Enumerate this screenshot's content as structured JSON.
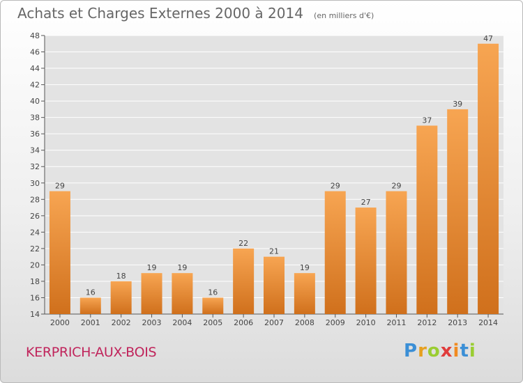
{
  "title": "Achats et Charges Externes 2000 à 2014",
  "subtitle": "(en milliers d'€)",
  "commune": "KERPRICH-AUX-BOIS",
  "logo": {
    "letters": [
      "P",
      "r",
      "o",
      "x",
      "i",
      "t",
      "i"
    ],
    "colors": [
      "#3b8fd6",
      "#e6a020",
      "#9acd32",
      "#e03c3c",
      "#f08a20",
      "#3b8fd6",
      "#9acd32"
    ]
  },
  "colors": {
    "bar_light": "#f7a552",
    "bar_dark": "#d0701c",
    "plot_bg": "#e3e3e3",
    "grid": "#ffffff",
    "text": "#444444"
  },
  "chart_data": {
    "type": "bar",
    "categories": [
      "2000",
      "2001",
      "2002",
      "2003",
      "2004",
      "2005",
      "2006",
      "2007",
      "2008",
      "2009",
      "2010",
      "2011",
      "2012",
      "2013",
      "2014"
    ],
    "values": [
      29,
      16,
      18,
      19,
      19,
      16,
      22,
      21,
      19,
      29,
      27,
      29,
      37,
      39,
      47
    ],
    "ylim": [
      14,
      48
    ],
    "yticks": [
      14,
      16,
      18,
      20,
      22,
      24,
      26,
      28,
      30,
      32,
      34,
      36,
      38,
      40,
      42,
      44,
      46,
      48
    ],
    "grid": true
  }
}
